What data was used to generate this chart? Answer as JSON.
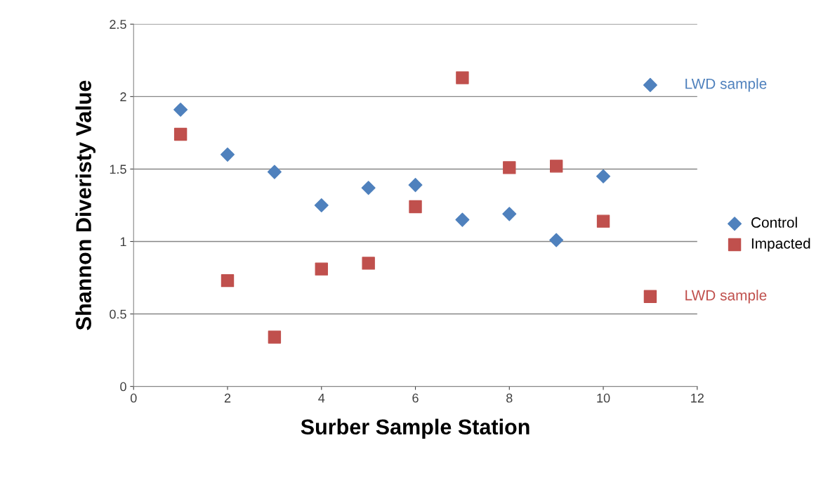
{
  "chart_data": {
    "type": "scatter",
    "xlabel": "Surber Sample Station",
    "ylabel": "Shannon Diveristy Value",
    "x": [
      1,
      2,
      3,
      4,
      5,
      6,
      7,
      8,
      9,
      10,
      11
    ],
    "series": [
      {
        "name": "Control",
        "color": "#4f81bd",
        "marker": "diamond",
        "values": [
          1.91,
          1.6,
          1.48,
          1.25,
          1.37,
          1.39,
          1.15,
          1.19,
          1.01,
          1.45,
          2.08
        ]
      },
      {
        "name": "Impacted",
        "color": "#c0504d",
        "marker": "square",
        "values": [
          1.74,
          0.73,
          0.34,
          0.81,
          0.85,
          1.24,
          2.13,
          1.51,
          1.52,
          1.14,
          0.62
        ]
      }
    ],
    "annotations": [
      {
        "text": "LWD sample",
        "x": 11,
        "y": 2.08
      },
      {
        "text": "LWD sample",
        "x": 11,
        "y": 0.62
      }
    ],
    "xlim": [
      0,
      12
    ],
    "xticks": [
      0,
      2,
      4,
      6,
      8,
      10,
      12
    ],
    "ylim": [
      0,
      2.5
    ],
    "yticks": [
      0,
      0.5,
      1,
      1.5,
      2,
      2.5
    ],
    "grid": "y",
    "legend": "right"
  }
}
